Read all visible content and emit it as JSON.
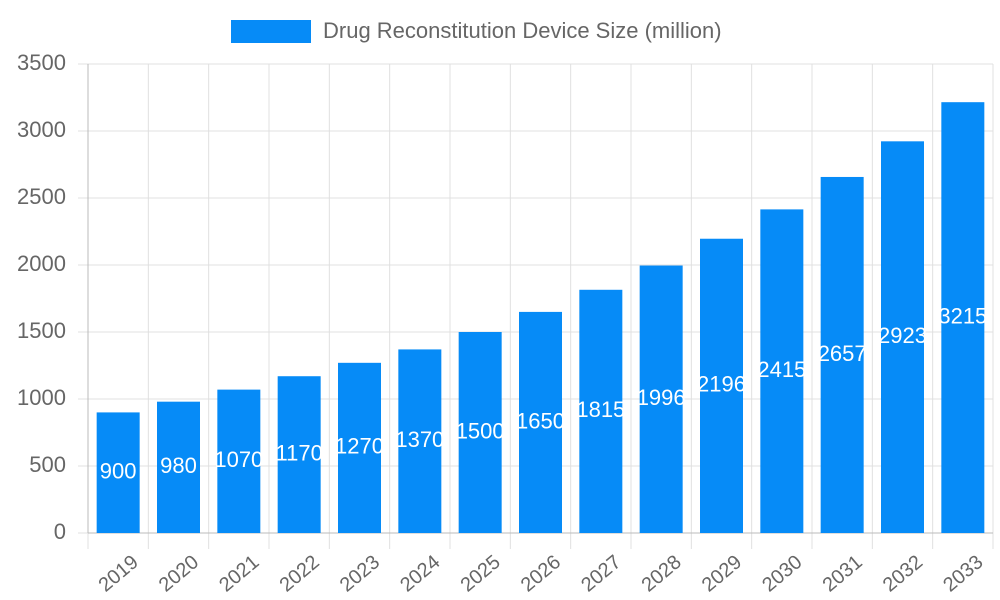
{
  "chart_data": {
    "type": "bar",
    "categories": [
      "2019",
      "2020",
      "2021",
      "2022",
      "2023",
      "2024",
      "2025",
      "2026",
      "2027",
      "2028",
      "2029",
      "2030",
      "2031",
      "2032",
      "2033"
    ],
    "series": [
      {
        "name": "Drug Reconstitution Device Size (million)",
        "color": "#068bf7",
        "values": [
          900,
          980,
          1070,
          1170,
          1270,
          1370,
          1500,
          1650,
          1815,
          1996,
          2196,
          2415,
          2657,
          2923,
          3215
        ]
      }
    ],
    "ylim": [
      0,
      3500
    ],
    "yticks": [
      0,
      500,
      1000,
      1500,
      2000,
      2500,
      3000,
      3500
    ],
    "grid": true,
    "legend": "top",
    "data_labels": true
  }
}
